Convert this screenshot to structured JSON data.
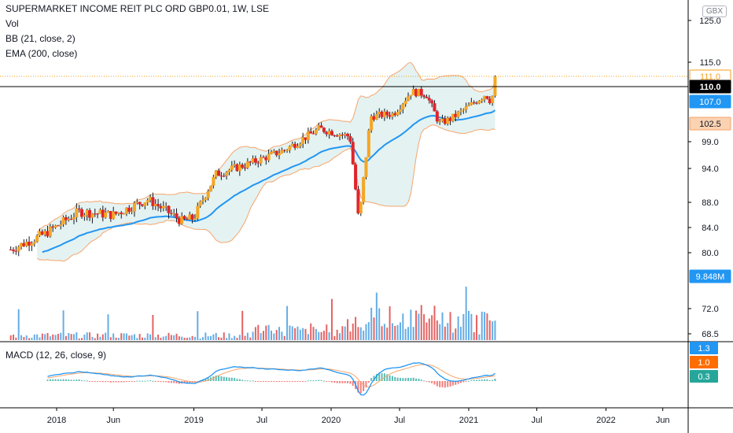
{
  "legend": {
    "title": "SUPERMARKET INCOME REIT PLC ORD GBP0.01, 1W, LSE",
    "vol": "Vol",
    "bb": "BB (21, close, 2)",
    "ema": "EMA (200, close)",
    "macd": "MACD (12, 26, close, 9)"
  },
  "currency_badge": "GBX",
  "price_axis": {
    "ticks": [
      {
        "label": "125.0",
        "value": 125.0
      },
      {
        "label": "115.0",
        "value": 115.0
      },
      {
        "label": "99.0",
        "value": 99.0
      },
      {
        "label": "94.0",
        "value": 94.0
      },
      {
        "label": "88.0",
        "value": 88.0
      },
      {
        "label": "84.0",
        "value": 84.0
      },
      {
        "label": "80.0",
        "value": 80.0
      },
      {
        "label": "72.0",
        "value": 72.0
      },
      {
        "label": "68.5",
        "value": 68.5
      }
    ],
    "badges": [
      {
        "label": "111.0",
        "value": 111.0,
        "bg": "#ffffff",
        "fg": "#f59c1a",
        "border": "#f59c1a"
      },
      {
        "label": "110.0",
        "value": 110.0,
        "bg": "#000000",
        "fg": "#ffffff",
        "border": "#000000"
      },
      {
        "label": "107.0",
        "value": 107.0,
        "bg": "#2196f3",
        "fg": "#ffffff",
        "border": "#2196f3"
      },
      {
        "label": "102.5",
        "value": 102.5,
        "bg": "#fbd2b2",
        "fg": "#131722",
        "border": "#f7a56b"
      },
      {
        "label": "9.848M",
        "value": 76.5,
        "bg": "#2196f3",
        "fg": "#ffffff",
        "border": "#2196f3"
      }
    ]
  },
  "macd_axis": {
    "badges": [
      {
        "label": "1.3",
        "value": 1.3,
        "bg": "#2196f3",
        "fg": "#ffffff"
      },
      {
        "label": "1.0",
        "value": 1.0,
        "bg": "#ff6d00",
        "fg": "#ffffff"
      },
      {
        "label": "0.3",
        "value": 0.3,
        "bg": "#26a69a",
        "fg": "#ffffff"
      }
    ]
  },
  "time_axis": {
    "labels": [
      {
        "label": "2018",
        "date": "2018-01-01"
      },
      {
        "label": "Jun",
        "date": "2018-06-01"
      },
      {
        "label": "2019",
        "date": "2019-01-01"
      },
      {
        "label": "Jul",
        "date": "2019-07-01"
      },
      {
        "label": "2020",
        "date": "2020-01-01"
      },
      {
        "label": "Jul",
        "date": "2020-07-01"
      },
      {
        "label": "2021",
        "date": "2021-01-01"
      },
      {
        "label": "Jul",
        "date": "2021-07-01"
      },
      {
        "label": "2022",
        "date": "2022-01-01"
      },
      {
        "label": "Jun",
        "date": "2022-06-01"
      }
    ]
  },
  "colors": {
    "up": "#f5a623",
    "down": "#e0242b",
    "ema": "#2196f3",
    "bb_band": "#f7a56b",
    "bb_fill": "#e4f2f2",
    "vol_up": "#4a9fe0",
    "vol_down": "#e04848",
    "macd": "#2196f3",
    "signal": "#f7a56b",
    "hist_pos": "#26a69a",
    "hist_neg": "#ef5350",
    "grid": "#e0e3eb"
  },
  "chart_data": {
    "type": "line",
    "symbol": "SUPERMARKET INCOME REIT PLC ORD GBP0.01",
    "interval": "1W",
    "exchange": "LSE",
    "price_key_points": [
      {
        "date": "2017-09-01",
        "close": 80.5
      },
      {
        "date": "2017-12-01",
        "close": 83.0
      },
      {
        "date": "2018-03-01",
        "close": 86.5
      },
      {
        "date": "2018-06-01",
        "close": 86.0
      },
      {
        "date": "2018-09-01",
        "close": 88.5
      },
      {
        "date": "2018-12-01",
        "close": 85.0
      },
      {
        "date": "2019-01-01",
        "close": 85.5
      },
      {
        "date": "2019-03-01",
        "close": 93.0
      },
      {
        "date": "2019-06-01",
        "close": 95.0
      },
      {
        "date": "2019-09-01",
        "close": 97.5
      },
      {
        "date": "2019-12-01",
        "close": 101.5
      },
      {
        "date": "2020-02-20",
        "close": 100.0
      },
      {
        "date": "2020-03-15",
        "close": 84.5
      },
      {
        "date": "2020-04-15",
        "close": 104.0
      },
      {
        "date": "2020-06-15",
        "close": 104.5
      },
      {
        "date": "2020-08-01",
        "close": 109.0
      },
      {
        "date": "2020-09-10",
        "close": 108.5
      },
      {
        "date": "2020-10-15",
        "close": 102.5
      },
      {
        "date": "2020-11-15",
        "close": 103.5
      },
      {
        "date": "2021-01-01",
        "close": 106.0
      },
      {
        "date": "2021-02-15",
        "close": 108.5
      },
      {
        "date": "2021-03-01",
        "close": 107.0
      },
      {
        "date": "2021-03-15",
        "close": 111.0
      }
    ],
    "ema200_last": 107.0,
    "bb_lower_last": 102.5,
    "last_price": 110.0,
    "last_volume": "9.848M",
    "macd_last": {
      "macd": 1.3,
      "signal": 1.0,
      "histogram": 0.3
    }
  }
}
